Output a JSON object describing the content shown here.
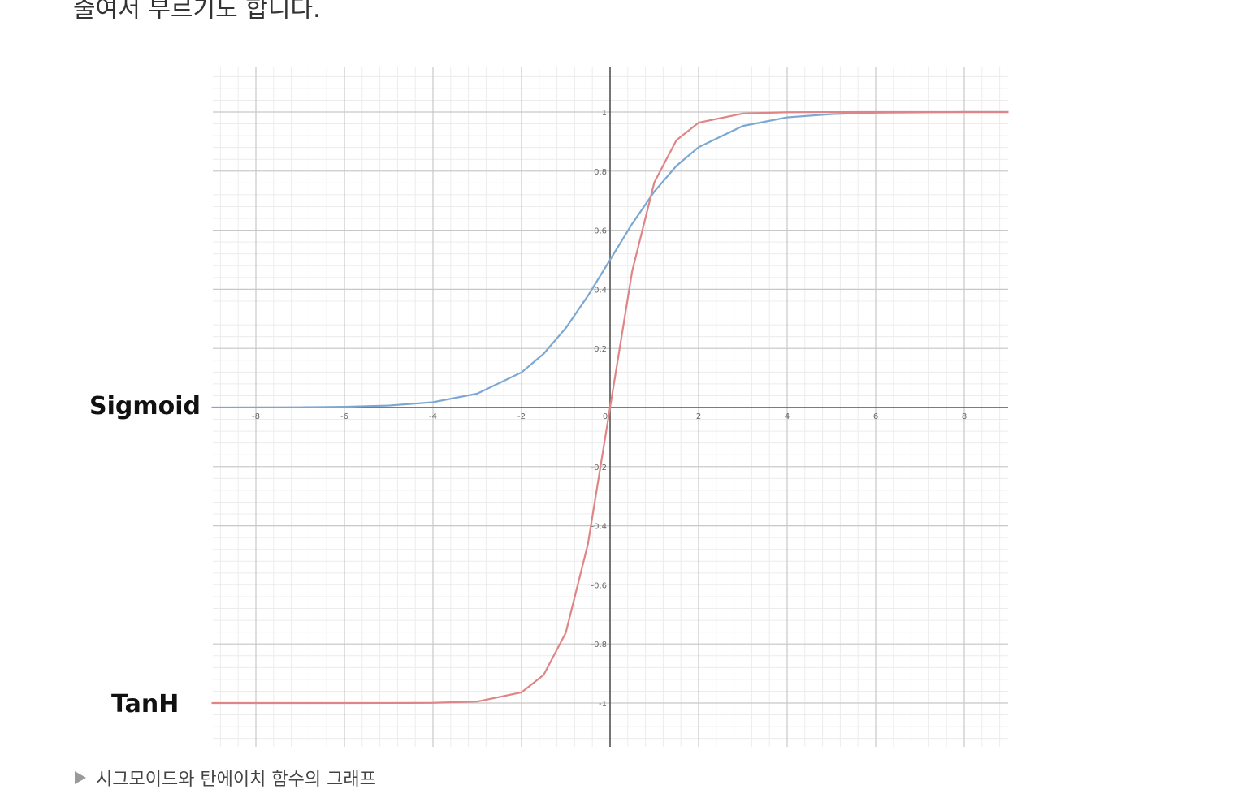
{
  "article": {
    "top_text": "줄여서 부르기도 합니다.",
    "caption_marker_icon": "triangle-right-icon",
    "caption": "시그모이드와 탄에이치 함수의 그래프"
  },
  "labels": {
    "sigmoid": "Sigmoid",
    "tanh": "TanH"
  },
  "chart_data": {
    "type": "line",
    "title": "",
    "xlabel": "",
    "ylabel": "",
    "xlim": [
      -9,
      9
    ],
    "ylim": [
      -1.15,
      1.15
    ],
    "grid": true,
    "x_ticks": [
      "-8",
      "-6",
      "-4",
      "-2",
      "0",
      "2",
      "4",
      "6",
      "8"
    ],
    "x_tick_values": [
      -8,
      -6,
      -4,
      -2,
      0,
      2,
      4,
      6,
      8
    ],
    "y_ticks": [
      "-1",
      "-0.8",
      "-0.6",
      "-0.4",
      "-0.2",
      "0.2",
      "0.4",
      "0.6",
      "0.8",
      "1"
    ],
    "y_tick_values": [
      -1,
      -0.8,
      -0.6,
      -0.4,
      -0.2,
      0.2,
      0.4,
      0.6,
      0.8,
      1
    ],
    "series": [
      {
        "name": "Sigmoid",
        "color": "#7ba7d1",
        "x": [
          -9,
          -8,
          -7,
          -6,
          -5,
          -4,
          -3,
          -2,
          -1.5,
          -1,
          -0.5,
          0,
          0.5,
          1,
          1.5,
          2,
          3,
          4,
          5,
          6,
          7,
          8,
          9
        ],
        "y": [
          0.0001,
          0.0003,
          0.0009,
          0.0025,
          0.0067,
          0.018,
          0.047,
          0.119,
          0.182,
          0.269,
          0.378,
          0.5,
          0.622,
          0.731,
          0.818,
          0.881,
          0.953,
          0.982,
          0.993,
          0.998,
          0.999,
          1.0,
          1.0
        ]
      },
      {
        "name": "TanH",
        "color": "#e08585",
        "x": [
          -9,
          -8,
          -7,
          -6,
          -5,
          -4,
          -3,
          -2,
          -1.5,
          -1,
          -0.5,
          0,
          0.5,
          1,
          1.5,
          2,
          3,
          4,
          5,
          6,
          7,
          8,
          9
        ],
        "y": [
          -1.0,
          -1.0,
          -1.0,
          -1.0,
          -0.9999,
          -0.9993,
          -0.995,
          -0.964,
          -0.905,
          -0.762,
          -0.462,
          0,
          0.462,
          0.762,
          0.905,
          0.964,
          0.995,
          0.9993,
          0.9999,
          1.0,
          1.0,
          1.0,
          1.0
        ]
      }
    ]
  }
}
